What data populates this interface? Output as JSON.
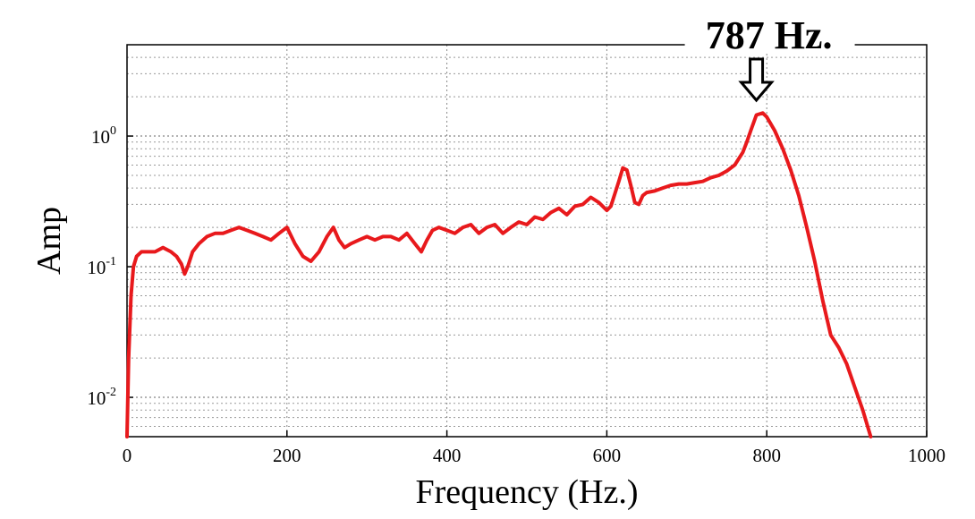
{
  "chart_data": {
    "type": "line",
    "xlabel": "Frequency (Hz.)",
    "ylabel": "Amp",
    "xlim": [
      0,
      1000
    ],
    "ylim": [
      0.005,
      5
    ],
    "yscale": "log",
    "grid": true,
    "x_ticks": [
      0,
      200,
      400,
      600,
      800,
      1000
    ],
    "x_tick_labels": [
      "0",
      "200",
      "400",
      "600",
      "800",
      "1000"
    ],
    "y_ticks": [
      0.01,
      0.1,
      1
    ],
    "y_tick_labels": [
      {
        "base": "10",
        "exp": "-2"
      },
      {
        "base": "10",
        "exp": "-1"
      },
      {
        "base": "10",
        "exp": "0"
      }
    ],
    "series": [
      {
        "color": "#e8191c",
        "x": [
          0,
          2,
          5,
          8,
          12,
          18,
          25,
          35,
          45,
          55,
          62,
          68,
          72,
          76,
          82,
          90,
          100,
          110,
          120,
          130,
          140,
          150,
          160,
          170,
          180,
          190,
          200,
          210,
          220,
          230,
          240,
          250,
          258,
          265,
          272,
          280,
          290,
          300,
          310,
          320,
          330,
          340,
          350,
          360,
          368,
          375,
          382,
          390,
          400,
          410,
          420,
          430,
          440,
          450,
          460,
          470,
          480,
          490,
          500,
          510,
          520,
          530,
          540,
          550,
          560,
          570,
          580,
          590,
          600,
          605,
          610,
          615,
          620,
          625,
          630,
          635,
          640,
          645,
          650,
          660,
          670,
          680,
          690,
          700,
          710,
          720,
          730,
          740,
          750,
          760,
          770,
          775,
          780,
          787,
          795,
          800,
          810,
          820,
          830,
          840,
          850,
          860,
          870,
          880,
          890,
          900,
          910,
          920,
          930
        ],
        "y": [
          0.005,
          0.02,
          0.06,
          0.1,
          0.12,
          0.13,
          0.13,
          0.13,
          0.14,
          0.13,
          0.12,
          0.105,
          0.088,
          0.1,
          0.13,
          0.15,
          0.17,
          0.18,
          0.18,
          0.19,
          0.2,
          0.19,
          0.18,
          0.17,
          0.16,
          0.18,
          0.2,
          0.15,
          0.12,
          0.11,
          0.13,
          0.17,
          0.2,
          0.16,
          0.14,
          0.15,
          0.16,
          0.17,
          0.16,
          0.17,
          0.17,
          0.16,
          0.18,
          0.15,
          0.13,
          0.16,
          0.19,
          0.2,
          0.19,
          0.18,
          0.2,
          0.21,
          0.18,
          0.2,
          0.21,
          0.18,
          0.2,
          0.22,
          0.21,
          0.24,
          0.23,
          0.26,
          0.28,
          0.25,
          0.29,
          0.3,
          0.34,
          0.31,
          0.27,
          0.29,
          0.36,
          0.45,
          0.57,
          0.55,
          0.42,
          0.31,
          0.3,
          0.35,
          0.37,
          0.38,
          0.4,
          0.42,
          0.43,
          0.43,
          0.44,
          0.45,
          0.48,
          0.5,
          0.54,
          0.6,
          0.75,
          0.9,
          1.1,
          1.45,
          1.5,
          1.4,
          1.1,
          0.8,
          0.55,
          0.35,
          0.2,
          0.11,
          0.055,
          0.03,
          0.024,
          0.018,
          0.012,
          0.008,
          0.005
        ]
      }
    ],
    "annotation": {
      "text": "787 Hz.",
      "x": 787,
      "y": 1.5
    }
  }
}
